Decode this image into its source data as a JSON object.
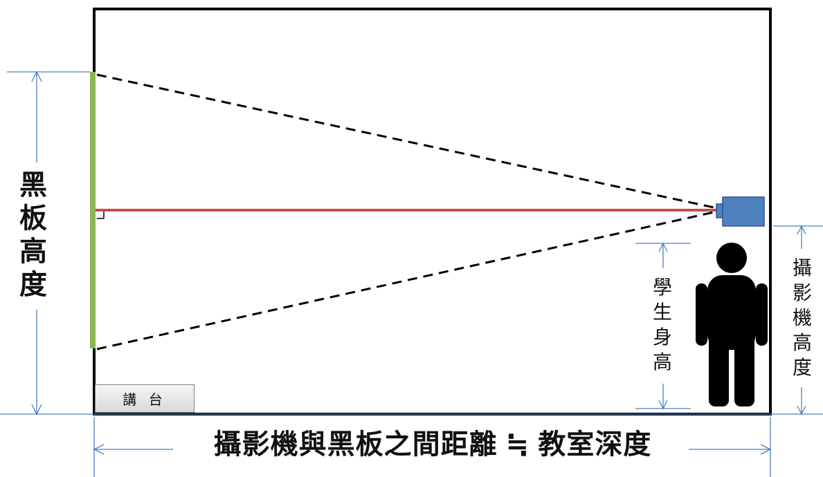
{
  "labels": {
    "blackboard_height": "黑板高度",
    "student_height": "學生身高",
    "camera_height": "攝影機高度",
    "podium": "講 台",
    "distance": "攝影機與黑板之間距離 ≒ 教室深度"
  },
  "colors": {
    "room_border": "#000000",
    "blackboard": "#8cb653",
    "center_line": "#c0504d",
    "camera": "#4f81bd",
    "dimension_lines": "#4a7ec4",
    "sight_lines": "#000000",
    "student": "#000000"
  },
  "icons": {
    "camera": "camera-icon",
    "student": "person-icon"
  }
}
